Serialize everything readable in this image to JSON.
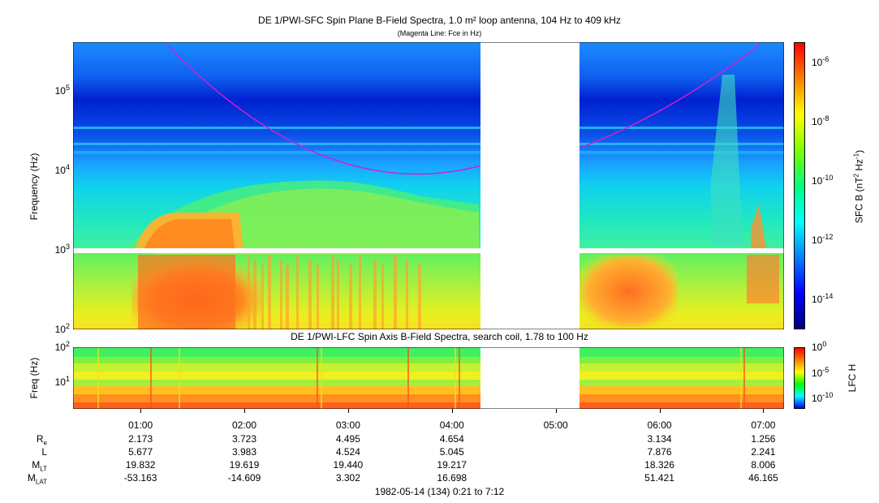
{
  "chart_data": [
    {
      "type": "heatmap",
      "title": "DE 1/PWI-SFC  Spin Plane B-Field Spectra, 1.0 m² loop antenna, 104 Hz to 409 kHz",
      "subtitle": "(Magenta Line: Fce in Hz)",
      "ylabel": "Frequency (Hz)",
      "yscale": "log",
      "ylim": [
        100,
        409000
      ],
      "yticks": [
        {
          "base": "10",
          "exp": "2"
        },
        {
          "base": "10",
          "exp": "3"
        },
        {
          "base": "10",
          "exp": "4"
        },
        {
          "base": "10",
          "exp": "5"
        }
      ],
      "colorbar": {
        "label_main": "SFC B (nT",
        "label_exp1": "2",
        "label_mid": " Hz",
        "label_exp2": "-1",
        "label_end": ")",
        "ticks": [
          {
            "base": "10",
            "exp": "-6"
          },
          {
            "base": "10",
            "exp": "-8"
          },
          {
            "base": "10",
            "exp": "-10"
          },
          {
            "base": "10",
            "exp": "-12"
          },
          {
            "base": "10",
            "exp": "-14"
          }
        ],
        "colors": [
          "#00007f",
          "#0000ff",
          "#0080ff",
          "#00ffff",
          "#00ff80",
          "#80ff00",
          "#ffff00",
          "#ff8000",
          "#ff0000"
        ]
      },
      "data_gap": [
        "04:17",
        "05:14"
      ],
      "fce_line": {
        "color": "#d020d0",
        "min_hz": 9000,
        "end_hz": 10000,
        "t_min": "03:40"
      }
    },
    {
      "type": "heatmap",
      "title": "DE 1/PWI-LFC  Spin Axis B-Field Spectra, search coil, 1.78 to 100 Hz",
      "ylabel": "Freq (Hz)",
      "yscale": "log",
      "ylim": [
        1.78,
        100
      ],
      "yticks": [
        {
          "base": "10",
          "exp": "2"
        },
        {
          "base": "10",
          "exp": "1"
        }
      ],
      "colorbar": {
        "label": "LFC H",
        "ticks": [
          {
            "base": "10",
            "exp": "0"
          },
          {
            "base": "10",
            "exp": "-5"
          },
          {
            "base": "10",
            "exp": "-10"
          }
        ],
        "colors": [
          "#0000ff",
          "#00ffff",
          "#00ff00",
          "#ffff00",
          "#ff8000",
          "#ff0000"
        ]
      }
    }
  ],
  "time_axis": {
    "ticks": [
      "01:00",
      "02:00",
      "03:00",
      "04:00",
      "05:00",
      "06:00",
      "07:00"
    ],
    "caption": "1982-05-14 (134) 0:21 to 7:12"
  },
  "ephemeris": {
    "rows": [
      {
        "label": "R",
        "sub": "e",
        "values": [
          "2.173",
          "3.723",
          "4.495",
          "4.654",
          "",
          "3.134",
          "1.256"
        ]
      },
      {
        "label": "L",
        "sub": "",
        "values": [
          "5.677",
          "3.983",
          "4.524",
          "5.045",
          "",
          "7.876",
          "2.241"
        ]
      },
      {
        "label": "M",
        "sub": "LT",
        "values": [
          "19.832",
          "19.619",
          "19.440",
          "19.217",
          "",
          "18.326",
          "8.006"
        ]
      },
      {
        "label": "M",
        "sub": "LAT",
        "values": [
          "-53.163",
          "-14.609",
          "3.302",
          "16.698",
          "",
          "51.421",
          "46.165"
        ]
      }
    ]
  }
}
